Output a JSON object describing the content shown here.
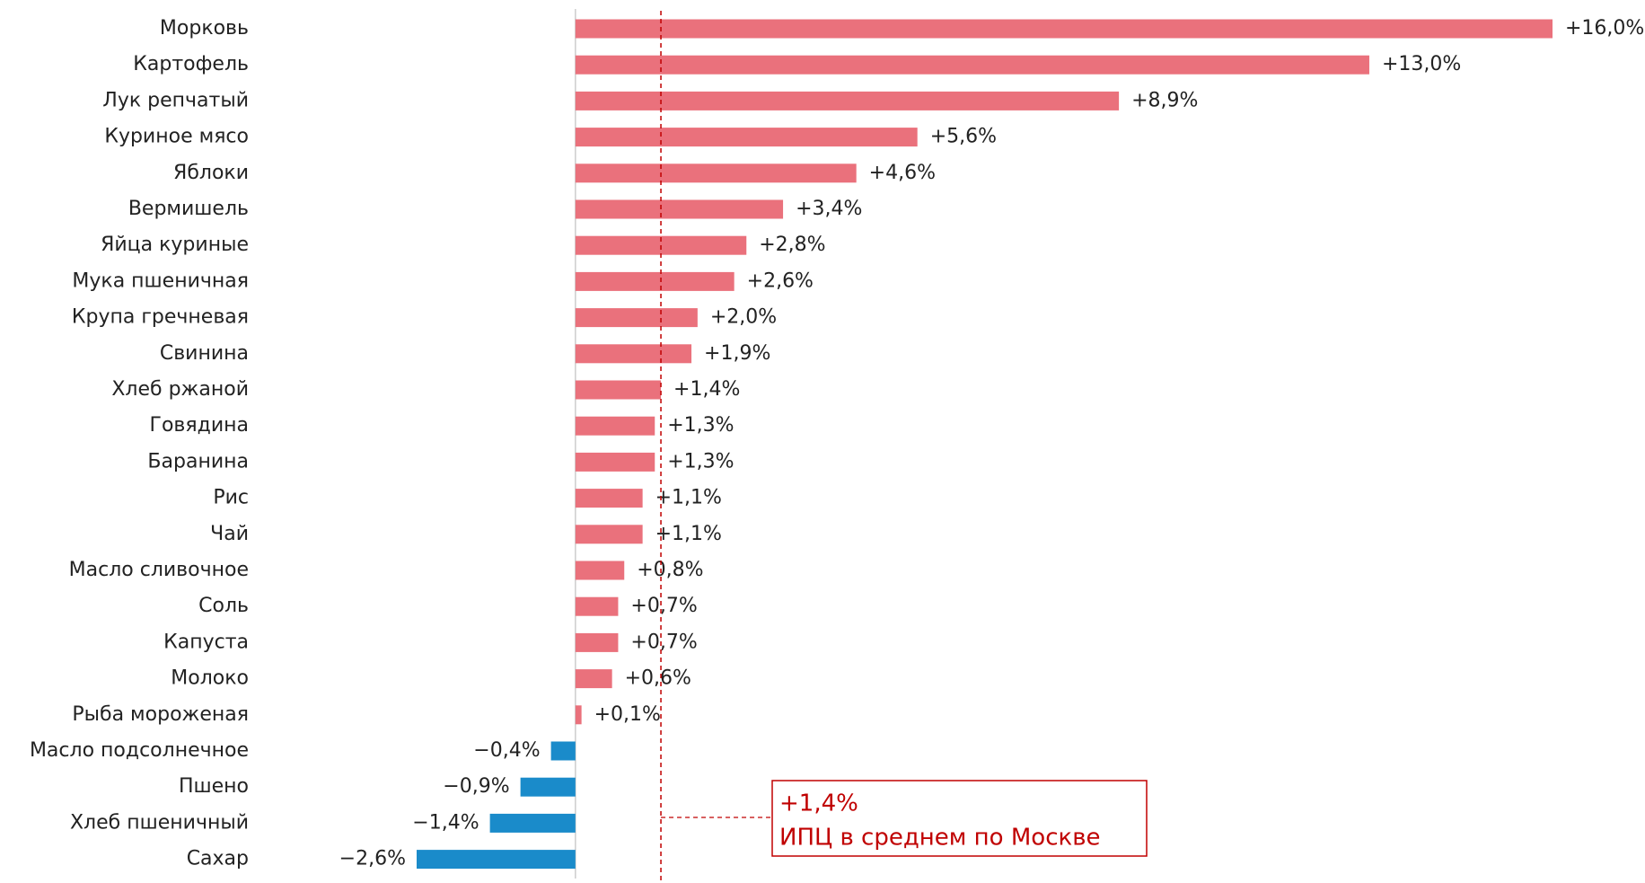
{
  "chart_data": {
    "type": "bar",
    "orientation": "horizontal",
    "categories": [
      "Морковь",
      "Картофель",
      "Лук репчатый",
      "Куриное мясо",
      "Яблоки",
      "Вермишель",
      "Яйца куриные",
      "Мука пшеничная",
      "Крупа гречневая",
      "Свинина",
      "Хлеб ржаной",
      "Говядина",
      "Баранина",
      "Рис",
      "Чай",
      "Масло сливочное",
      "Соль",
      "Капуста",
      "Молоко",
      "Рыба мороженая",
      "Масло подсолнечное",
      "Пшено",
      "Хлеб пшеничный",
      "Сахар"
    ],
    "values": [
      16.0,
      13.0,
      8.9,
      5.6,
      4.6,
      3.4,
      2.8,
      2.6,
      2.0,
      1.9,
      1.4,
      1.3,
      1.3,
      1.1,
      1.1,
      0.8,
      0.7,
      0.7,
      0.6,
      0.1,
      -0.4,
      -0.9,
      -1.4,
      -2.6
    ],
    "value_labels": [
      "+16,0%",
      "+13,0%",
      "+8,9%",
      "+5,6%",
      "+4,6%",
      "+3,4%",
      "+2,8%",
      "+2,6%",
      "+2,0%",
      "+1,9%",
      "+1,4%",
      "+1,3%",
      "+1,3%",
      "+1,1%",
      "+1,1%",
      "+0,8%",
      "+0,7%",
      "+0,7%",
      "+0,6%",
      "+0,1%",
      "−0,4%",
      "−0,9%",
      "−1,4%",
      "−2,6%"
    ],
    "color_positive": "#ea717c",
    "color_negative": "#1a8bca",
    "xlim": [
      -2.6,
      16.0
    ],
    "reference_line": {
      "value": 1.4,
      "label": "+1,4%",
      "text": "ИПЦ в среднем по Москве",
      "color": "#c00000"
    }
  }
}
